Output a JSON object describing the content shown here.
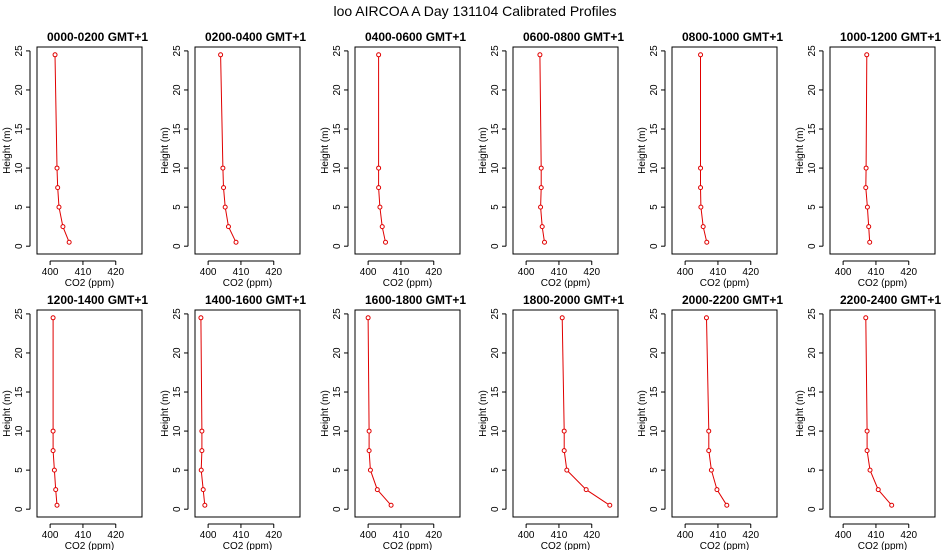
{
  "title": "loo AIRCOA A  Day 131104  Calibrated Profiles",
  "line_color": "#e00000",
  "chart_data": [
    {
      "type": "line",
      "title": "0000-0200 GMT+1",
      "xlabel": "CO2 (ppm)",
      "ylabel": "Height (m)",
      "xlim": [
        396,
        428
      ],
      "ylim": [
        -1,
        25.5
      ],
      "xticks": [
        400,
        410,
        420
      ],
      "yticks": [
        0,
        5,
        10,
        15,
        20,
        25
      ],
      "series": [
        {
          "x": [
            405.8,
            403.9,
            402.7,
            402.3,
            402.1,
            401.5
          ],
          "y": [
            0.5,
            2.5,
            5,
            7.5,
            10,
            24.5
          ]
        }
      ]
    },
    {
      "type": "line",
      "title": "0200-0400 GMT+1",
      "xlabel": "CO2 (ppm)",
      "ylabel": "Height (m)",
      "xlim": [
        396,
        428
      ],
      "ylim": [
        -1,
        25.5
      ],
      "xticks": [
        400,
        410,
        420
      ],
      "yticks": [
        0,
        5,
        10,
        15,
        20,
        25
      ],
      "series": [
        {
          "x": [
            408.5,
            406.2,
            405.2,
            404.7,
            404.5,
            403.8
          ],
          "y": [
            0.5,
            2.5,
            5,
            7.5,
            10,
            24.5
          ]
        }
      ]
    },
    {
      "type": "line",
      "title": "0400-0600 GMT+1",
      "xlabel": "CO2 (ppm)",
      "ylabel": "Height (m)",
      "xlim": [
        396,
        428
      ],
      "ylim": [
        -1,
        25.5
      ],
      "xticks": [
        400,
        410,
        420
      ],
      "yticks": [
        0,
        5,
        10,
        15,
        20,
        25
      ],
      "series": [
        {
          "x": [
            405.3,
            404.3,
            403.6,
            403.2,
            403.2,
            403.2
          ],
          "y": [
            0.5,
            2.5,
            5,
            7.5,
            10,
            24.5
          ]
        }
      ]
    },
    {
      "type": "line",
      "title": "0600-0800 GMT+1",
      "xlabel": "CO2 (ppm)",
      "ylabel": "Height (m)",
      "xlim": [
        396,
        428
      ],
      "ylim": [
        -1,
        25.5
      ],
      "xticks": [
        400,
        410,
        420
      ],
      "yticks": [
        0,
        5,
        10,
        15,
        20,
        25
      ],
      "series": [
        {
          "x": [
            405.6,
            404.9,
            404.4,
            404.6,
            404.6,
            404.2
          ],
          "y": [
            0.5,
            2.5,
            5,
            7.5,
            10,
            24.5
          ]
        }
      ]
    },
    {
      "type": "line",
      "title": "0800-1000 GMT+1",
      "xlabel": "CO2 (ppm)",
      "ylabel": "Height (m)",
      "xlim": [
        396,
        428
      ],
      "ylim": [
        -1,
        25.5
      ],
      "xticks": [
        400,
        410,
        420
      ],
      "yticks": [
        0,
        5,
        10,
        15,
        20,
        25
      ],
      "series": [
        {
          "x": [
            406.6,
            405.5,
            404.8,
            404.7,
            404.7,
            404.7
          ],
          "y": [
            0.5,
            2.5,
            5,
            7.5,
            10,
            24.5
          ]
        }
      ]
    },
    {
      "type": "line",
      "title": "1000-1200 GMT+1",
      "xlabel": "CO2 (ppm)",
      "ylabel": "Height (m)",
      "xlim": [
        396,
        428
      ],
      "ylim": [
        -1,
        25.5
      ],
      "xticks": [
        400,
        410,
        420
      ],
      "yticks": [
        0,
        5,
        10,
        15,
        20,
        25
      ],
      "series": [
        {
          "x": [
            408.1,
            407.8,
            407.4,
            406.9,
            407.0,
            407.2
          ],
          "y": [
            0.5,
            2.5,
            5,
            7.5,
            10,
            24.5
          ]
        }
      ]
    },
    {
      "type": "line",
      "title": "1200-1400 GMT+1",
      "xlabel": "CO2 (ppm)",
      "ylabel": "Height (m)",
      "xlim": [
        396,
        428
      ],
      "ylim": [
        -1,
        25.5
      ],
      "xticks": [
        400,
        410,
        420
      ],
      "yticks": [
        0,
        5,
        10,
        15,
        20,
        25
      ],
      "series": [
        {
          "x": [
            402.1,
            401.7,
            401.3,
            400.9,
            400.9,
            400.9
          ],
          "y": [
            0.5,
            2.5,
            5,
            7.5,
            10,
            24.5
          ]
        }
      ]
    },
    {
      "type": "line",
      "title": "1400-1600 GMT+1",
      "xlabel": "CO2 (ppm)",
      "ylabel": "Height (m)",
      "xlim": [
        396,
        428
      ],
      "ylim": [
        -1,
        25.5
      ],
      "xticks": [
        400,
        410,
        420
      ],
      "yticks": [
        0,
        5,
        10,
        15,
        20,
        25
      ],
      "series": [
        {
          "x": [
            399.0,
            398.5,
            397.9,
            398.1,
            398.1,
            397.8
          ],
          "y": [
            0.5,
            2.5,
            5,
            7.5,
            10,
            24.5
          ]
        }
      ]
    },
    {
      "type": "line",
      "title": "1600-1800 GMT+1",
      "xlabel": "CO2 (ppm)",
      "ylabel": "Height (m)",
      "xlim": [
        396,
        428
      ],
      "ylim": [
        -1,
        25.5
      ],
      "xticks": [
        400,
        410,
        420
      ],
      "yticks": [
        0,
        5,
        10,
        15,
        20,
        25
      ],
      "series": [
        {
          "x": [
            407.0,
            402.8,
            400.7,
            400.3,
            400.3,
            400.0
          ],
          "y": [
            0.5,
            2.5,
            5,
            7.5,
            10,
            24.5
          ]
        }
      ]
    },
    {
      "type": "line",
      "title": "1800-2000 GMT+1",
      "xlabel": "CO2 (ppm)",
      "ylabel": "Height (m)",
      "xlim": [
        396,
        428
      ],
      "ylim": [
        -1,
        25.5
      ],
      "xticks": [
        400,
        410,
        420
      ],
      "yticks": [
        0,
        5,
        10,
        15,
        20,
        25
      ],
      "series": [
        {
          "x": [
            425.5,
            418.3,
            412.4,
            411.6,
            411.6,
            411.0
          ],
          "y": [
            0.5,
            2.5,
            5,
            7.5,
            10,
            24.5
          ]
        }
      ]
    },
    {
      "type": "line",
      "title": "2000-2200 GMT+1",
      "xlabel": "CO2 (ppm)",
      "ylabel": "Height (m)",
      "xlim": [
        396,
        428
      ],
      "ylim": [
        -1,
        25.5
      ],
      "xticks": [
        400,
        410,
        420
      ],
      "yticks": [
        0,
        5,
        10,
        15,
        20,
        25
      ],
      "series": [
        {
          "x": [
            412.7,
            409.7,
            408.0,
            407.2,
            407.2,
            406.5
          ],
          "y": [
            0.5,
            2.5,
            5,
            7.5,
            10,
            24.5
          ]
        }
      ]
    },
    {
      "type": "line",
      "title": "2200-2400 GMT+1",
      "xlabel": "CO2 (ppm)",
      "ylabel": "Height (m)",
      "xlim": [
        396,
        428
      ],
      "ylim": [
        -1,
        25.5
      ],
      "xticks": [
        400,
        410,
        420
      ],
      "yticks": [
        0,
        5,
        10,
        15,
        20,
        25
      ],
      "series": [
        {
          "x": [
            414.8,
            410.7,
            408.2,
            407.3,
            407.3,
            406.9
          ],
          "y": [
            0.5,
            2.5,
            5,
            7.5,
            10,
            24.5
          ]
        }
      ]
    }
  ]
}
